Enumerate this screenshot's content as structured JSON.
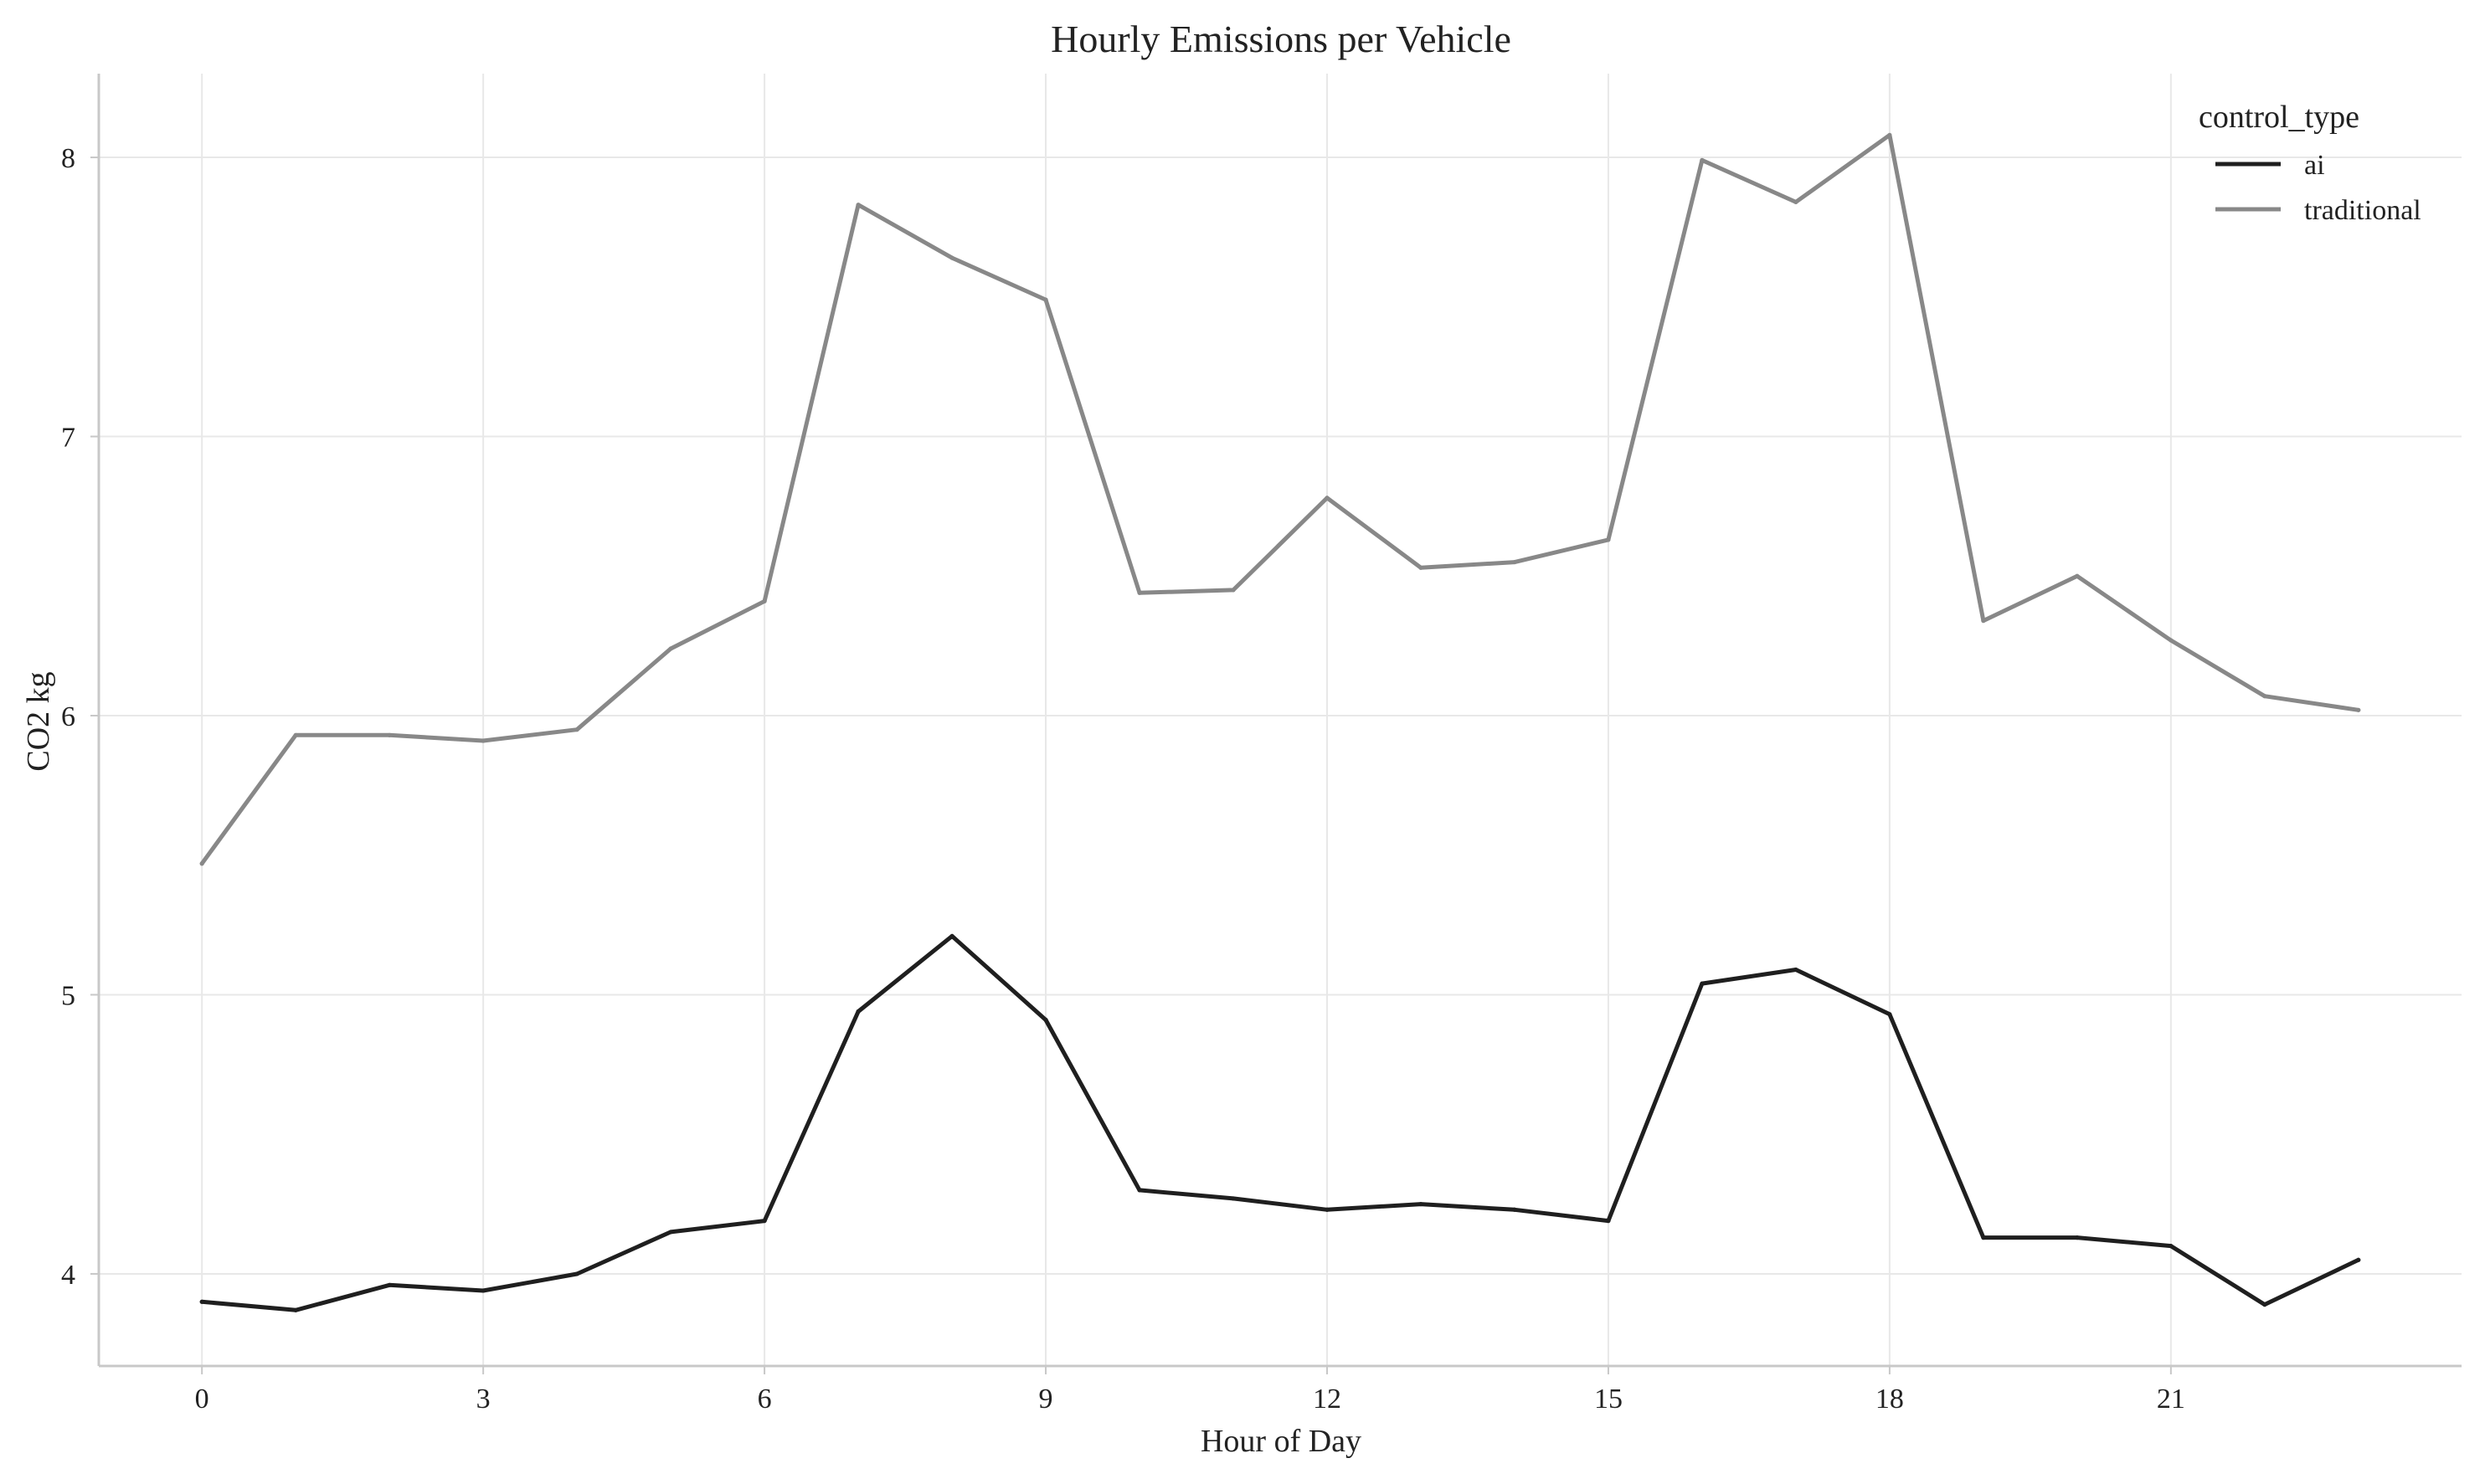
{
  "chart_data": {
    "type": "line",
    "title": "Hourly Emissions per Vehicle",
    "xlabel": "Hour of Day",
    "ylabel": "CO2 kg",
    "x": [
      0,
      1,
      2,
      3,
      4,
      5,
      6,
      7,
      8,
      9,
      10,
      11,
      12,
      13,
      14,
      15,
      16,
      17,
      18,
      19,
      20,
      21,
      22,
      23
    ],
    "xlim": [
      -1.1,
      24.1
    ],
    "ylim": [
      3.67,
      8.3
    ],
    "xticks": [
      0,
      3,
      6,
      9,
      12,
      15,
      18,
      21
    ],
    "xtick_labels": [
      "0",
      "3",
      "6",
      "9",
      "12",
      "15",
      "18",
      "21"
    ],
    "yticks": [
      4,
      5,
      6,
      7,
      8
    ],
    "ytick_labels": [
      "4",
      "5",
      "6",
      "7",
      "8"
    ],
    "grid": true,
    "legend": {
      "title": "control_type",
      "position": "top-right"
    },
    "series": [
      {
        "name": "ai",
        "color": "#1f1f1f",
        "values": [
          3.9,
          3.87,
          3.96,
          3.94,
          4.0,
          4.15,
          4.19,
          4.94,
          5.21,
          4.91,
          4.3,
          4.27,
          4.23,
          4.25,
          4.23,
          4.19,
          5.04,
          5.09,
          4.93,
          4.13,
          4.13,
          4.1,
          3.89,
          4.05
        ]
      },
      {
        "name": "traditional",
        "color": "#888888",
        "values": [
          5.47,
          5.93,
          5.93,
          5.91,
          5.95,
          6.24,
          6.41,
          7.83,
          7.64,
          7.49,
          6.44,
          6.45,
          6.78,
          6.53,
          6.55,
          6.63,
          7.99,
          7.84,
          8.08,
          6.34,
          6.5,
          6.27,
          6.07,
          6.02
        ]
      }
    ],
    "colors": {
      "grid": "#e8e8e8",
      "axis": "#c8c8c8",
      "text": "#222222"
    }
  }
}
